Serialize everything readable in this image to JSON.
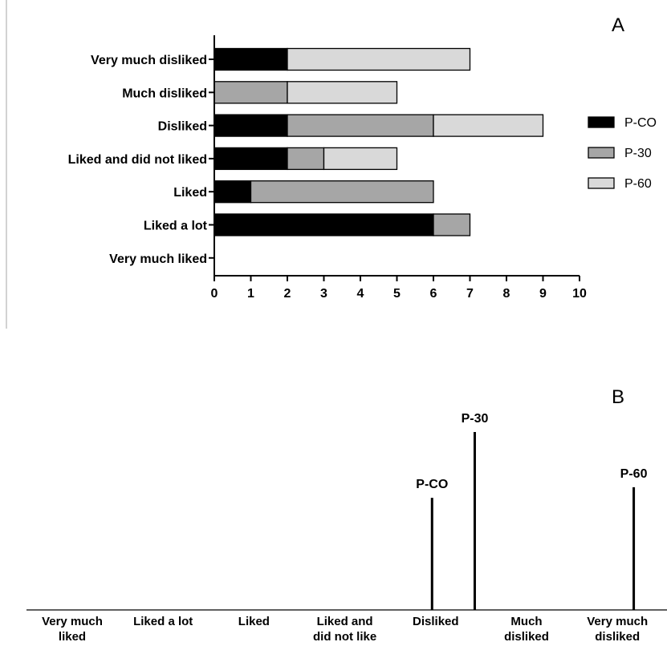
{
  "chart_data": [
    {
      "type": "bar",
      "orientation": "horizontal",
      "stacked": true,
      "panel_label": "A",
      "categories": [
        "Very much disliked",
        "Much disliked",
        "Disliked",
        "Liked and did not liked",
        "Liked",
        "Liked a lot",
        "Very much liked"
      ],
      "series": [
        {
          "name": "P-CO",
          "color": "#000000",
          "values": [
            2,
            0,
            2,
            2,
            1,
            6,
            0
          ]
        },
        {
          "name": "P-30",
          "color": "#a6a6a6",
          "values": [
            0,
            2,
            4,
            1,
            5,
            1,
            0
          ]
        },
        {
          "name": "P-60",
          "color": "#d9d9d9",
          "values": [
            5,
            3,
            3,
            2,
            0,
            0,
            0
          ]
        }
      ],
      "xlim": [
        0,
        10
      ],
      "xticks": [
        "0",
        "1",
        "2",
        "3",
        "4",
        "5",
        "6",
        "7",
        "8",
        "9",
        "10"
      ],
      "legend_position": "right",
      "grid": false
    },
    {
      "type": "bar",
      "subtype": "needle",
      "panel_label": "B",
      "categories": [
        "Very much liked",
        "Liked a lot",
        "Liked",
        "Liked and did not like",
        "Disliked",
        "Much disliked",
        "Very much disliked"
      ],
      "category_lines": [
        [
          "Very much",
          "liked"
        ],
        [
          "Liked a lot"
        ],
        [
          "Liked"
        ],
        [
          "Liked and",
          "did not like"
        ],
        [
          "Disliked"
        ],
        [
          "Much",
          "disliked"
        ],
        [
          "Very much",
          "disliked"
        ]
      ],
      "series": [
        {
          "name": "P-CO",
          "x": 3.96,
          "value": 0.63
        },
        {
          "name": "P-30",
          "x": 4.43,
          "value": 1.0
        },
        {
          "name": "P-60",
          "x": 6.18,
          "value": 0.69
        }
      ],
      "grid": false
    }
  ]
}
